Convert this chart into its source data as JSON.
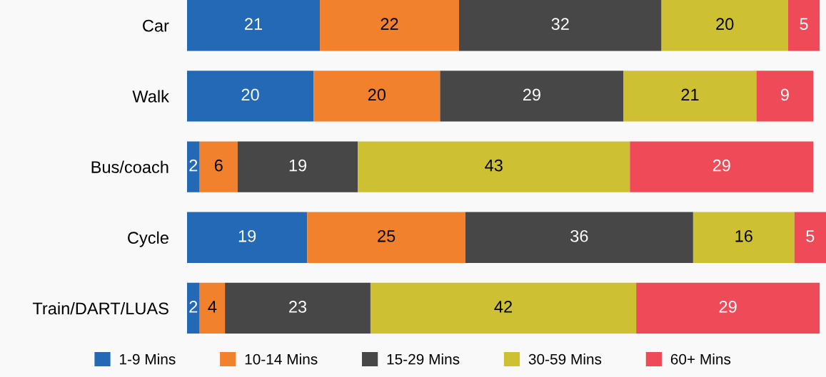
{
  "chart_data": {
    "type": "bar",
    "orientation": "horizontal",
    "stacked": true,
    "data_labels": true,
    "legend": "bottom",
    "grid": false,
    "tick_labels": "y",
    "xlim": [
      0,
      101
    ],
    "categories": [
      "Car",
      "Walk",
      "Bus/coach",
      "Cycle",
      "Train/DART/LUAS"
    ],
    "series": [
      {
        "name": "1-9 Mins",
        "color": "#2469b6",
        "values": [
          21,
          20,
          2,
          19,
          2
        ]
      },
      {
        "name": "10-14 Mins",
        "color": "#f2812e",
        "values": [
          22,
          20,
          6,
          25,
          4
        ]
      },
      {
        "name": "15-29 Mins",
        "color": "#474747",
        "values": [
          32,
          29,
          19,
          36,
          23
        ]
      },
      {
        "name": "30-59 Mins",
        "color": "#cdc133",
        "values": [
          20,
          21,
          43,
          16,
          42
        ]
      },
      {
        "name": "60+ Mins",
        "color": "#ef4a57",
        "values": [
          5,
          9,
          29,
          5,
          29
        ]
      }
    ]
  }
}
